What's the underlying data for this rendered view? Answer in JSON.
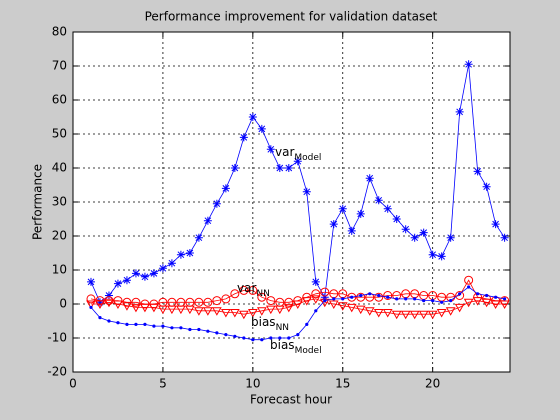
{
  "chart_data": {
    "type": "line",
    "title": "Performance improvement for validation dataset",
    "xlabel": "Forecast hour",
    "ylabel": "Performance",
    "x": [
      1,
      1.5,
      2,
      2.5,
      3,
      3.5,
      4,
      4.5,
      5,
      5.5,
      6,
      6.5,
      7,
      7.5,
      8,
      8.5,
      9,
      9.5,
      10,
      10.5,
      11,
      11.5,
      12,
      12.5,
      13,
      13.5,
      14,
      14.5,
      15,
      15.5,
      16,
      16.5,
      17,
      17.5,
      18,
      18.5,
      19,
      19.5,
      20,
      20.5,
      21,
      21.5,
      22,
      22.5,
      23,
      23.5,
      24
    ],
    "series": [
      {
        "color": "#0000ff",
        "marker": "star",
        "values": [
          6.5,
          0.5,
          2.5,
          6,
          7,
          9,
          8,
          9,
          10.5,
          12,
          14.5,
          15,
          19.5,
          24.5,
          29.5,
          34,
          40,
          49,
          55,
          51.5,
          45.5,
          40,
          40,
          42,
          33,
          6.5,
          2,
          23.5,
          28,
          21.5,
          26.5,
          37,
          30.5,
          28,
          25,
          22,
          19.5,
          21,
          14.5,
          14,
          19.5,
          56.5,
          70.5,
          39,
          34.5,
          23.5,
          19.5
        ]
      },
      {
        "color": "#ff0000",
        "marker": "circle",
        "values": [
          1.5,
          1,
          1,
          1,
          0.5,
          0.5,
          0,
          0,
          0.5,
          0.5,
          0.5,
          0.5,
          0.5,
          0.5,
          1,
          1.5,
          3,
          4,
          4,
          2,
          1,
          0.5,
          0.5,
          1,
          2,
          3,
          3.5,
          3,
          3,
          2,
          2,
          2,
          2,
          2.5,
          2.5,
          3,
          3,
          2.5,
          2.5,
          2,
          2,
          2.5,
          7,
          2,
          1.5,
          1,
          1
        ]
      },
      {
        "color": "#ff0000",
        "marker": "triangle-down",
        "values": [
          0,
          0,
          0.5,
          0,
          -0.5,
          -1,
          -1,
          -1,
          -1.5,
          -1.5,
          -1.5,
          -1.5,
          -2,
          -2,
          -2,
          -2.5,
          -2.5,
          -3,
          -2.5,
          -2,
          -1.5,
          -1.5,
          -1,
          0,
          1,
          1.5,
          0.5,
          0,
          -0.5,
          -1,
          -1.5,
          -2,
          -2.5,
          -2.5,
          -3,
          -3,
          -3,
          -3,
          -3,
          -2.5,
          -2,
          -1,
          0.5,
          1,
          0.5,
          0,
          0
        ]
      },
      {
        "color": "#0000ff",
        "marker": "dot",
        "values": [
          -1,
          -4,
          -5,
          -5.5,
          -6,
          -6,
          -6,
          -6.5,
          -6.5,
          -7,
          -7,
          -7.5,
          -7.5,
          -8,
          -8.5,
          -9,
          -9.5,
          -10,
          -10.5,
          -10.5,
          -10,
          -10,
          -10,
          -9,
          -6,
          -2,
          1,
          1.5,
          1.5,
          2,
          2.5,
          3,
          2.5,
          2,
          1.5,
          1.5,
          1.5,
          1,
          1,
          0.5,
          1,
          3,
          5,
          3,
          2.5,
          2,
          1.5
        ]
      }
    ],
    "annotations": [
      {
        "text": "var",
        "sub": "Model"
      },
      {
        "text": "var",
        "sub": "NN"
      },
      {
        "text": "bias",
        "sub": "NN"
      },
      {
        "text": "bias",
        "sub": "Model"
      }
    ],
    "xlim": [
      0,
      24.3
    ],
    "xticks": [
      0,
      5,
      10,
      15,
      20
    ],
    "ylim": [
      -20,
      80
    ],
    "yticks": [
      -20,
      -10,
      0,
      10,
      20,
      30,
      40,
      50,
      60,
      70,
      80
    ],
    "grid": true
  }
}
